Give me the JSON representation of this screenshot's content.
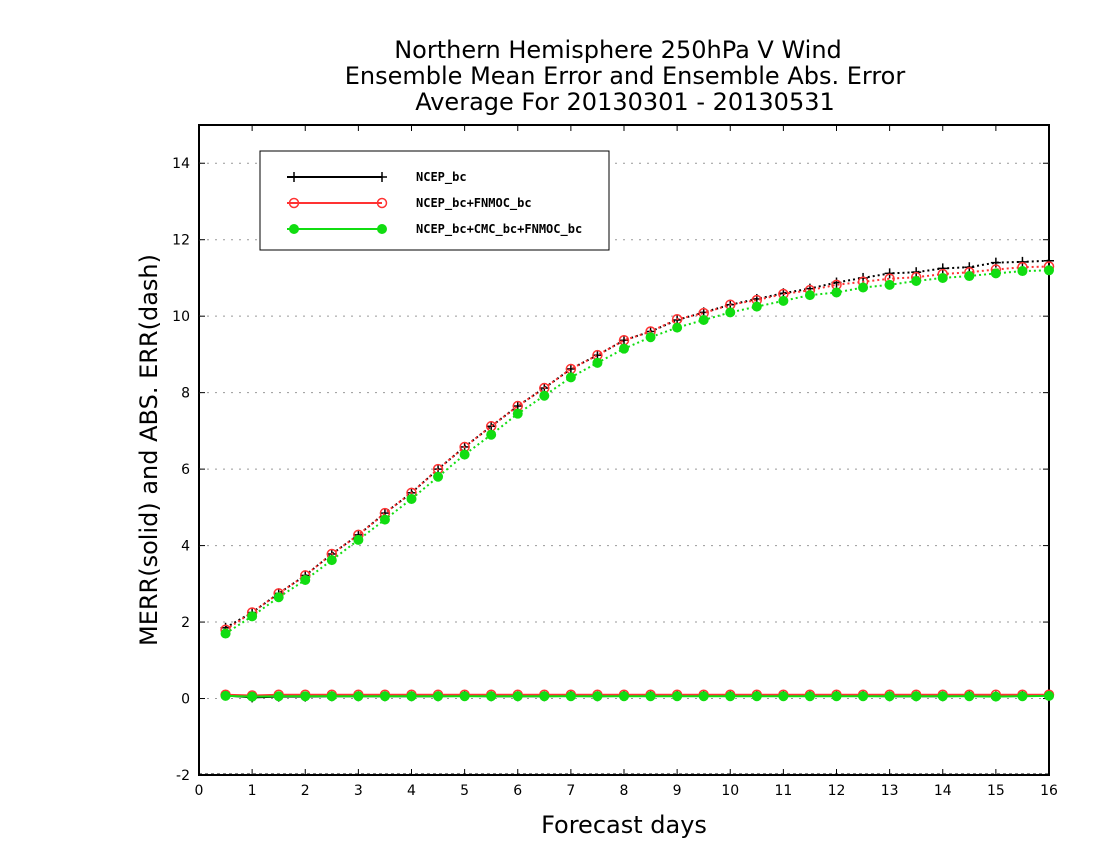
{
  "chart_data": {
    "type": "line",
    "title": [
      "Northern Hemisphere 250hPa V Wind",
      "Ensemble Mean Error and Ensemble Abs. Error",
      "Average For 20130301 - 20130531"
    ],
    "xlabel": "Forecast days",
    "ylabel": "MERR(solid) and ABS. ERR(dash)",
    "xlim": [
      0,
      16
    ],
    "ylim": [
      -2,
      15
    ],
    "xticks": [
      0,
      1,
      2,
      3,
      4,
      5,
      6,
      7,
      8,
      9,
      10,
      11,
      12,
      13,
      14,
      15,
      16
    ],
    "xtick_labels": [
      "0",
      "1",
      "2",
      "3",
      "4",
      "5",
      "6",
      "7",
      "8",
      "9",
      "10",
      "11",
      "12",
      "13",
      "14",
      "15",
      "16"
    ],
    "yticks": [
      -2,
      0,
      2,
      4,
      6,
      8,
      10,
      12,
      14
    ],
    "ytick_labels": [
      "-2",
      "0",
      "2",
      "4",
      "6",
      "8",
      "10",
      "12",
      "14"
    ],
    "grid": "horizontal dotted",
    "legend_position": "top-left",
    "x": [
      0.5,
      1,
      1.5,
      2,
      2.5,
      3,
      3.5,
      4,
      4.5,
      5,
      5.5,
      6,
      6.5,
      7,
      7.5,
      8,
      8.5,
      9,
      9.5,
      10,
      10.5,
      11,
      11.5,
      12,
      12.5,
      13,
      13.5,
      14,
      14.5,
      15,
      15.5,
      16
    ],
    "series": [
      {
        "name": "NCEP_bc",
        "color": "#000000",
        "marker": "plus",
        "abs_err": [
          1.85,
          2.25,
          2.75,
          3.22,
          3.78,
          4.28,
          4.85,
          5.38,
          6.0,
          6.58,
          7.12,
          7.65,
          8.12,
          8.62,
          8.98,
          9.37,
          9.6,
          9.9,
          10.1,
          10.3,
          10.45,
          10.6,
          10.72,
          10.88,
          11.0,
          11.12,
          11.15,
          11.25,
          11.28,
          11.4,
          11.42,
          11.45
        ],
        "mean_err": [
          0.08,
          0.03,
          0.05,
          0.05,
          0.06,
          0.06,
          0.06,
          0.06,
          0.06,
          0.07,
          0.06,
          0.06,
          0.06,
          0.07,
          0.06,
          0.07,
          0.07,
          0.07,
          0.07,
          0.07,
          0.07,
          0.07,
          0.07,
          0.07,
          0.07,
          0.06,
          0.06,
          0.06,
          0.07,
          0.06,
          0.07,
          0.08
        ]
      },
      {
        "name": "NCEP_bc+FNMOC_bc",
        "color": "#ff3333",
        "marker": "open-circle",
        "abs_err": [
          1.8,
          2.25,
          2.75,
          3.22,
          3.78,
          4.28,
          4.85,
          5.38,
          6.0,
          6.58,
          7.12,
          7.65,
          8.12,
          8.62,
          8.98,
          9.37,
          9.6,
          9.92,
          10.08,
          10.3,
          10.42,
          10.58,
          10.68,
          10.82,
          10.9,
          10.98,
          11.02,
          11.1,
          11.15,
          11.22,
          11.28,
          11.3
        ],
        "mean_err": [
          0.1,
          0.08,
          0.1,
          0.1,
          0.1,
          0.1,
          0.1,
          0.1,
          0.1,
          0.1,
          0.1,
          0.1,
          0.1,
          0.1,
          0.1,
          0.1,
          0.1,
          0.1,
          0.1,
          0.1,
          0.1,
          0.1,
          0.1,
          0.1,
          0.1,
          0.1,
          0.1,
          0.1,
          0.1,
          0.1,
          0.1,
          0.1
        ]
      },
      {
        "name": "NCEP_bc+CMC_bc+FNMOC_bc",
        "color": "#11dd11",
        "marker": "filled-circle",
        "abs_err": [
          1.7,
          2.15,
          2.65,
          3.1,
          3.62,
          4.15,
          4.68,
          5.22,
          5.8,
          6.38,
          6.9,
          7.45,
          7.92,
          8.4,
          8.78,
          9.15,
          9.45,
          9.7,
          9.9,
          10.1,
          10.25,
          10.4,
          10.55,
          10.62,
          10.75,
          10.82,
          10.92,
          11.0,
          11.05,
          11.12,
          11.18,
          11.2
        ],
        "mean_err": [
          0.07,
          0.05,
          0.06,
          0.06,
          0.06,
          0.06,
          0.06,
          0.06,
          0.06,
          0.06,
          0.06,
          0.06,
          0.06,
          0.06,
          0.06,
          0.06,
          0.06,
          0.06,
          0.06,
          0.06,
          0.06,
          0.06,
          0.06,
          0.06,
          0.06,
          0.06,
          0.06,
          0.06,
          0.06,
          0.05,
          0.06,
          0.07
        ]
      }
    ]
  }
}
